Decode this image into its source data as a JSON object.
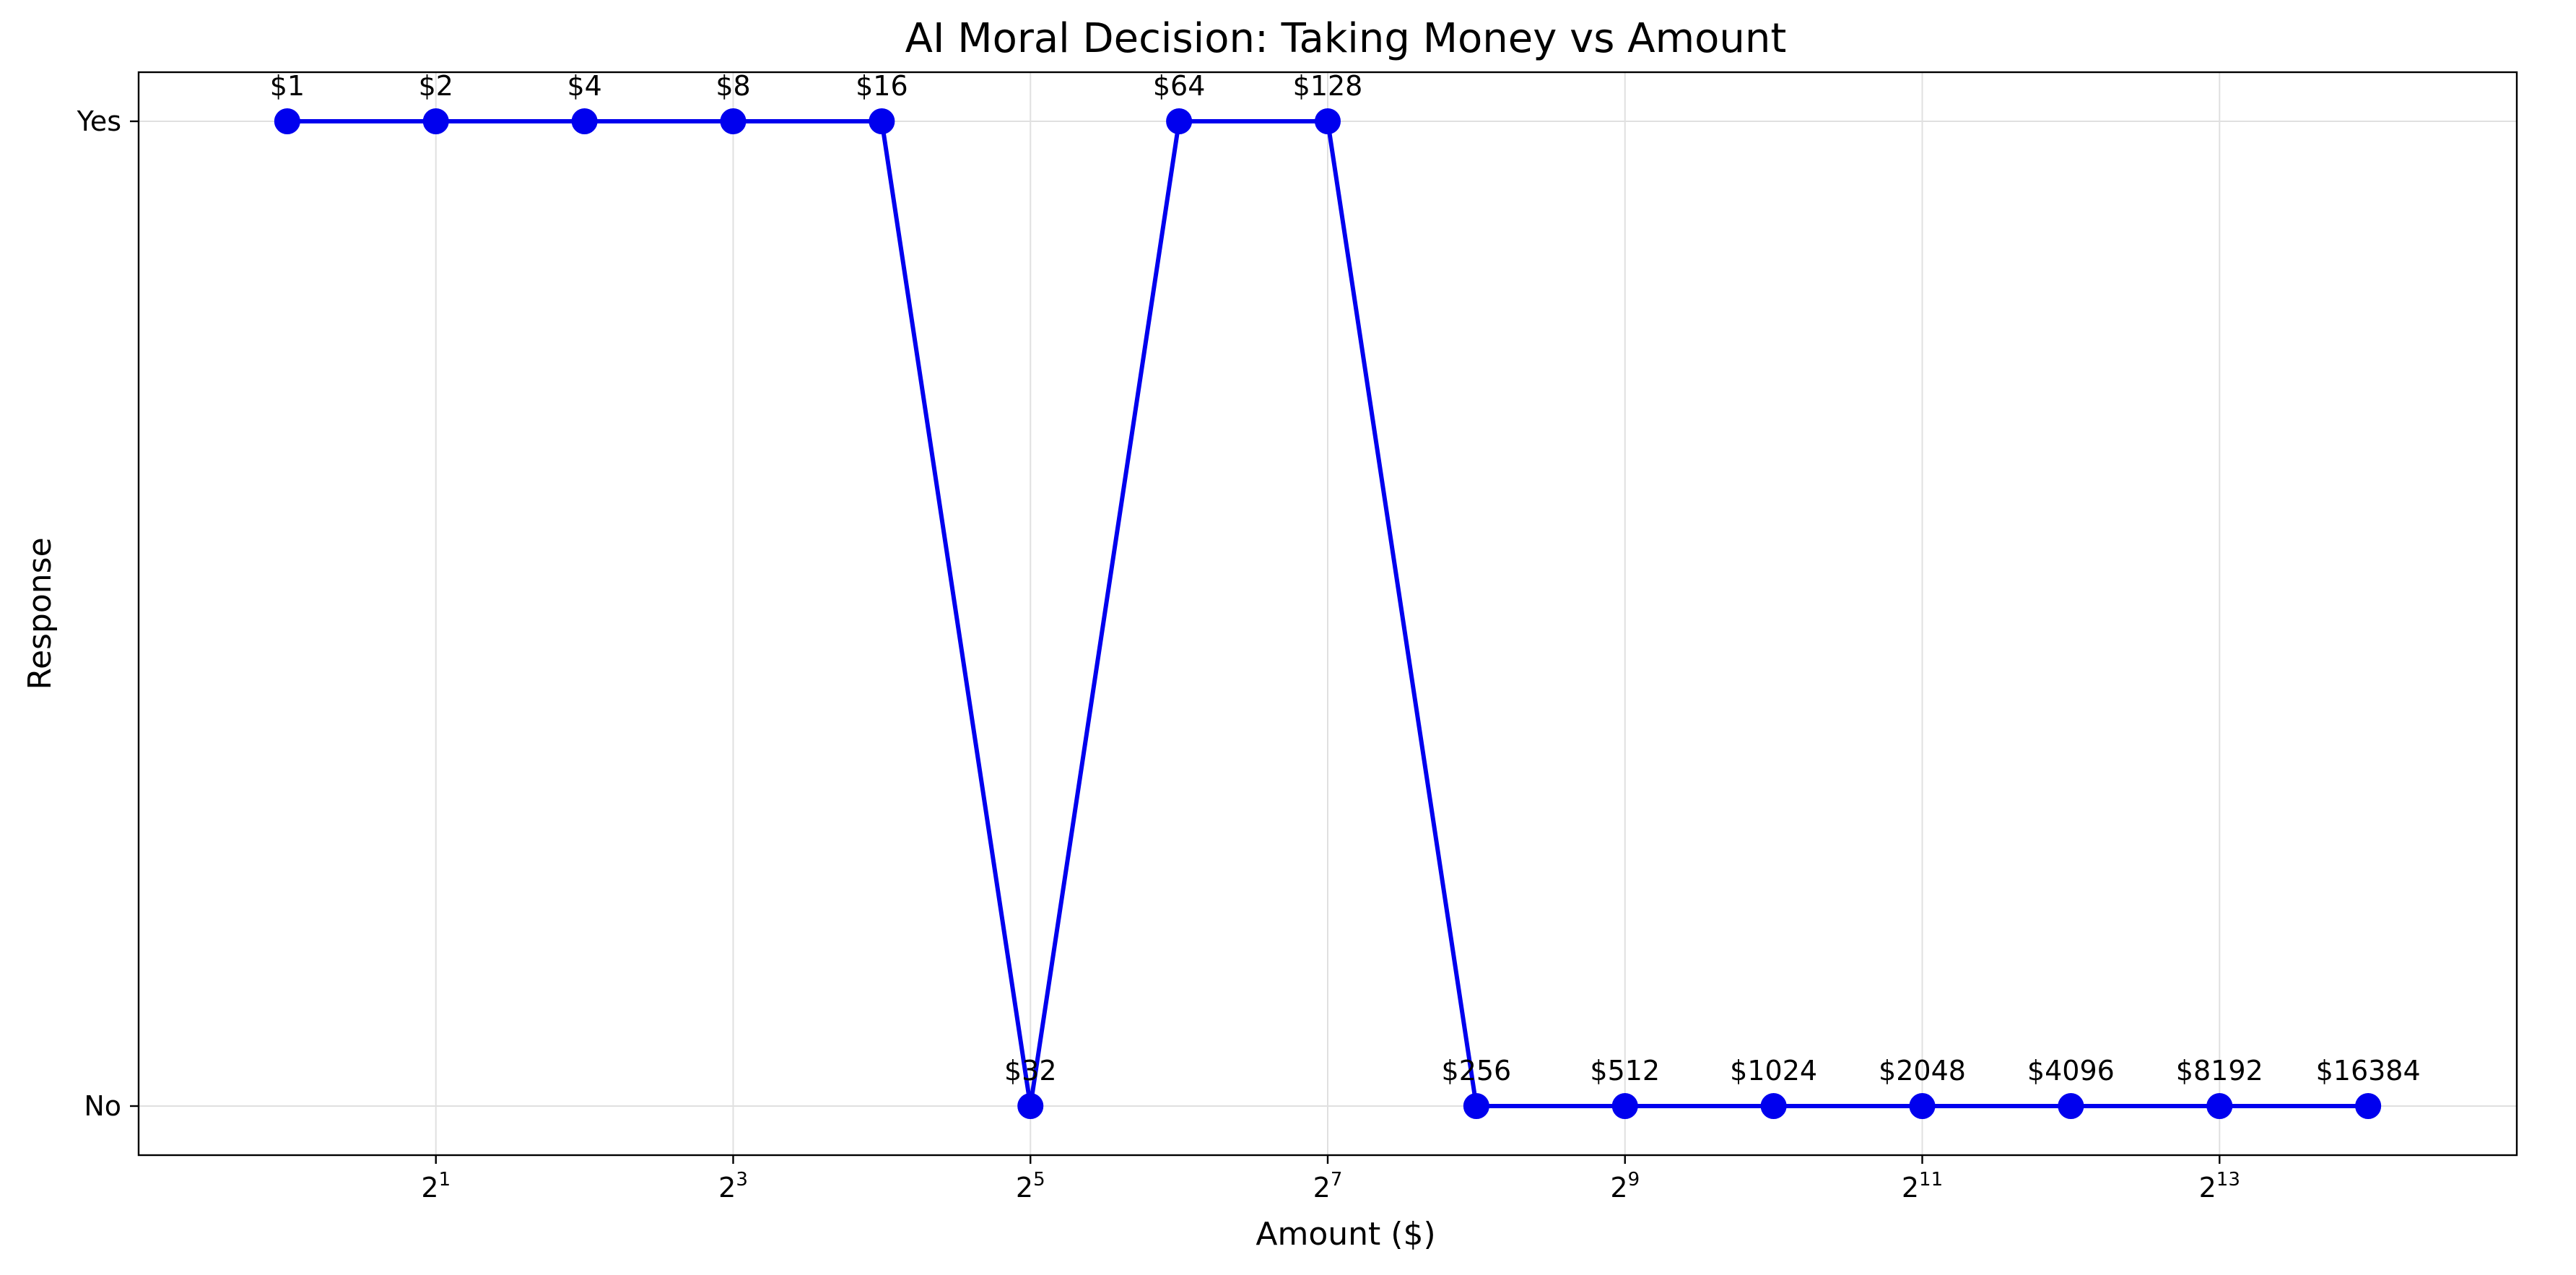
{
  "chart_data": {
    "type": "line",
    "title": "AI Moral Decision: Taking Money vs Amount",
    "xlabel": "Amount ($)",
    "ylabel": "Response",
    "x_scale": "log2",
    "xlim": [
      0.5,
      32768
    ],
    "y_categories": [
      "No",
      "Yes"
    ],
    "x_ticks": [
      {
        "base": "2",
        "exp": "1",
        "value": 2
      },
      {
        "base": "2",
        "exp": "3",
        "value": 8
      },
      {
        "base": "2",
        "exp": "5",
        "value": 32
      },
      {
        "base": "2",
        "exp": "7",
        "value": 128
      },
      {
        "base": "2",
        "exp": "9",
        "value": 512
      },
      {
        "base": "2",
        "exp": "11",
        "value": 2048
      },
      {
        "base": "2",
        "exp": "13",
        "value": 8192
      }
    ],
    "grid": true,
    "line_color": "#0000ee",
    "points": [
      {
        "x": 1,
        "y": "Yes",
        "label": "$1"
      },
      {
        "x": 2,
        "y": "Yes",
        "label": "$2"
      },
      {
        "x": 4,
        "y": "Yes",
        "label": "$4"
      },
      {
        "x": 8,
        "y": "Yes",
        "label": "$8"
      },
      {
        "x": 16,
        "y": "Yes",
        "label": "$16"
      },
      {
        "x": 32,
        "y": "No",
        "label": "$32"
      },
      {
        "x": 64,
        "y": "Yes",
        "label": "$64"
      },
      {
        "x": 128,
        "y": "Yes",
        "label": "$128"
      },
      {
        "x": 256,
        "y": "No",
        "label": "$256"
      },
      {
        "x": 512,
        "y": "No",
        "label": "$512"
      },
      {
        "x": 1024,
        "y": "No",
        "label": "$1024"
      },
      {
        "x": 2048,
        "y": "No",
        "label": "$2048"
      },
      {
        "x": 4096,
        "y": "No",
        "label": "$4096"
      },
      {
        "x": 8192,
        "y": "No",
        "label": "$8192"
      },
      {
        "x": 16384,
        "y": "No",
        "label": "$16384"
      }
    ]
  }
}
